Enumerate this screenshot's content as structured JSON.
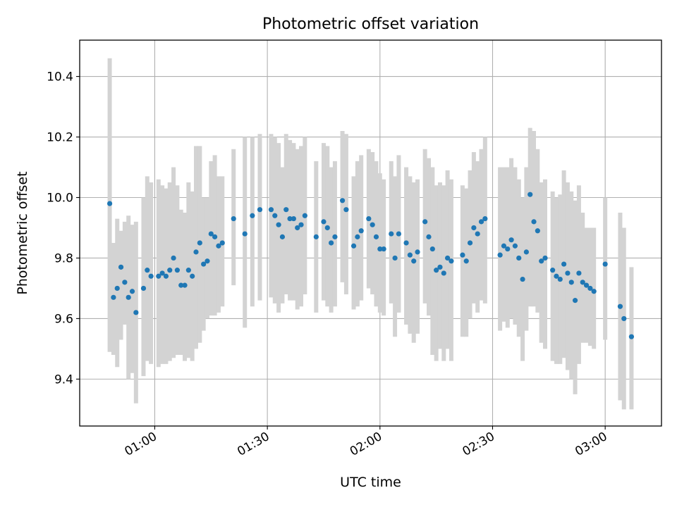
{
  "chart_data": {
    "type": "scatter",
    "title": "Photometric offset variation",
    "xlabel": "UTC time",
    "ylabel": "Photometric offset",
    "xlim": [
      "00:40",
      "03:15"
    ],
    "ylim": [
      9.245,
      10.52
    ],
    "grid": true,
    "colors": {
      "marker": "#1f77b4",
      "errorbar": "#d3d3d3",
      "grid": "#b0b0b0"
    },
    "x_ticks": [
      "01:00",
      "01:30",
      "02:00",
      "02:30",
      "03:00"
    ],
    "y_ticks": [
      "9.4",
      "9.6",
      "9.8",
      "10.0",
      "10.2",
      "10.4"
    ],
    "series": [
      {
        "x": [
          "00:48",
          "00:49",
          "00:50",
          "00:51",
          "00:52",
          "00:53",
          "00:54",
          "00:55",
          "00:57",
          "00:58",
          "00:59",
          "01:01",
          "01:02",
          "01:03",
          "01:04",
          "01:05",
          "01:06",
          "01:07",
          "01:08",
          "01:09",
          "01:10",
          "01:11",
          "01:12",
          "01:13",
          "01:14",
          "01:15",
          "01:16",
          "01:17",
          "01:18",
          "01:21",
          "01:24",
          "01:26",
          "01:28",
          "01:31",
          "01:32",
          "01:33",
          "01:34",
          "01:35",
          "01:36",
          "01:37",
          "01:38",
          "01:39",
          "01:40",
          "01:43",
          "01:45",
          "01:46",
          "01:47",
          "01:48",
          "01:50",
          "01:51",
          "01:53",
          "01:54",
          "01:55",
          "01:57",
          "01:58",
          "01:59",
          "02:00",
          "02:01",
          "02:03",
          "02:04",
          "02:05",
          "02:07",
          "02:08",
          "02:09",
          "02:10",
          "02:12",
          "02:13",
          "02:14",
          "02:15",
          "02:16",
          "02:17",
          "02:18",
          "02:19",
          "02:22",
          "02:23",
          "02:24",
          "02:25",
          "02:26",
          "02:27",
          "02:28",
          "02:32",
          "02:33",
          "02:34",
          "02:35",
          "02:36",
          "02:37",
          "02:38",
          "02:39",
          "02:40",
          "02:41",
          "02:42",
          "02:43",
          "02:44",
          "02:46",
          "02:47",
          "02:48",
          "02:49",
          "02:50",
          "02:51",
          "02:52",
          "02:53",
          "02:54",
          "02:55",
          "02:56",
          "02:57",
          "03:00",
          "03:04",
          "03:05",
          "03:07"
        ],
        "y": [
          9.98,
          9.67,
          9.7,
          9.77,
          9.72,
          9.67,
          9.69,
          9.62,
          9.7,
          9.76,
          9.74,
          9.74,
          9.75,
          9.74,
          9.76,
          9.8,
          9.76,
          9.71,
          9.71,
          9.76,
          9.74,
          9.82,
          9.85,
          9.78,
          9.79,
          9.88,
          9.87,
          9.84,
          9.85,
          9.93,
          9.88,
          9.94,
          9.96,
          9.96,
          9.94,
          9.91,
          9.87,
          9.96,
          9.93,
          9.93,
          9.9,
          9.91,
          9.94,
          9.87,
          9.92,
          9.9,
          9.85,
          9.87,
          9.99,
          9.96,
          9.84,
          9.87,
          9.89,
          9.93,
          9.91,
          9.87,
          9.83,
          9.83,
          9.88,
          9.8,
          9.88,
          9.85,
          9.81,
          9.79,
          9.82,
          9.92,
          9.87,
          9.83,
          9.76,
          9.77,
          9.75,
          9.8,
          9.79,
          9.81,
          9.79,
          9.85,
          9.9,
          9.88,
          9.92,
          9.93,
          9.81,
          9.84,
          9.83,
          9.86,
          9.84,
          9.8,
          9.73,
          9.82,
          10.01,
          9.92,
          9.89,
          9.79,
          9.8,
          9.76,
          9.74,
          9.73,
          9.78,
          9.75,
          9.72,
          9.66,
          9.75,
          9.72,
          9.71,
          9.7,
          9.69,
          9.78,
          9.64,
          9.6,
          9.54
        ],
        "lower": [
          9.49,
          9.48,
          9.44,
          9.53,
          9.58,
          9.4,
          9.42,
          9.32,
          9.41,
          9.46,
          9.45,
          9.44,
          9.45,
          9.45,
          9.46,
          9.47,
          9.48,
          9.48,
          9.46,
          9.47,
          9.46,
          9.5,
          9.52,
          9.56,
          9.6,
          9.61,
          9.61,
          9.62,
          9.64,
          9.71,
          9.57,
          9.64,
          9.66,
          9.67,
          9.65,
          9.62,
          9.65,
          9.68,
          9.66,
          9.66,
          9.63,
          9.64,
          9.68,
          9.62,
          9.66,
          9.64,
          9.62,
          9.64,
          9.72,
          9.68,
          9.63,
          9.64,
          9.66,
          9.7,
          9.68,
          9.64,
          9.62,
          9.61,
          9.65,
          9.54,
          9.62,
          9.58,
          9.55,
          9.52,
          9.55,
          9.65,
          9.61,
          9.48,
          9.46,
          9.5,
          9.46,
          9.5,
          9.46,
          9.54,
          9.54,
          9.6,
          9.65,
          9.62,
          9.66,
          9.65,
          9.56,
          9.59,
          9.57,
          9.6,
          9.58,
          9.54,
          9.46,
          9.56,
          9.64,
          9.64,
          9.62,
          9.52,
          9.5,
          9.46,
          9.45,
          9.45,
          9.47,
          9.43,
          9.4,
          9.35,
          9.45,
          9.52,
          9.52,
          9.51,
          9.5,
          9.53,
          9.33,
          9.3,
          9.3
        ],
        "upper": [
          10.46,
          9.85,
          9.93,
          9.89,
          9.92,
          9.94,
          9.91,
          9.92,
          10.0,
          10.07,
          10.05,
          10.06,
          10.04,
          10.03,
          10.05,
          10.1,
          10.04,
          9.96,
          9.95,
          10.05,
          10.02,
          10.17,
          10.17,
          10.0,
          10.0,
          10.12,
          10.14,
          10.07,
          10.07,
          10.16,
          10.2,
          10.2,
          10.21,
          10.21,
          10.2,
          10.18,
          10.1,
          10.21,
          10.19,
          10.18,
          10.16,
          10.17,
          10.2,
          10.12,
          10.18,
          10.17,
          10.1,
          10.12,
          10.22,
          10.21,
          10.07,
          10.12,
          10.14,
          10.16,
          10.15,
          10.12,
          10.08,
          10.06,
          10.12,
          10.07,
          10.14,
          10.1,
          10.07,
          10.05,
          10.06,
          10.16,
          10.13,
          10.1,
          10.04,
          10.05,
          10.04,
          10.09,
          10.06,
          10.04,
          10.03,
          10.09,
          10.15,
          10.12,
          10.16,
          10.2,
          10.1,
          10.1,
          10.1,
          10.13,
          10.1,
          10.06,
          10.0,
          10.1,
          10.23,
          10.22,
          10.16,
          10.05,
          10.06,
          10.02,
          10.0,
          10.01,
          10.09,
          10.05,
          10.02,
          9.99,
          10.04,
          9.95,
          9.9,
          9.9,
          9.9,
          10.0,
          9.95,
          9.9,
          9.77
        ]
      }
    ]
  }
}
